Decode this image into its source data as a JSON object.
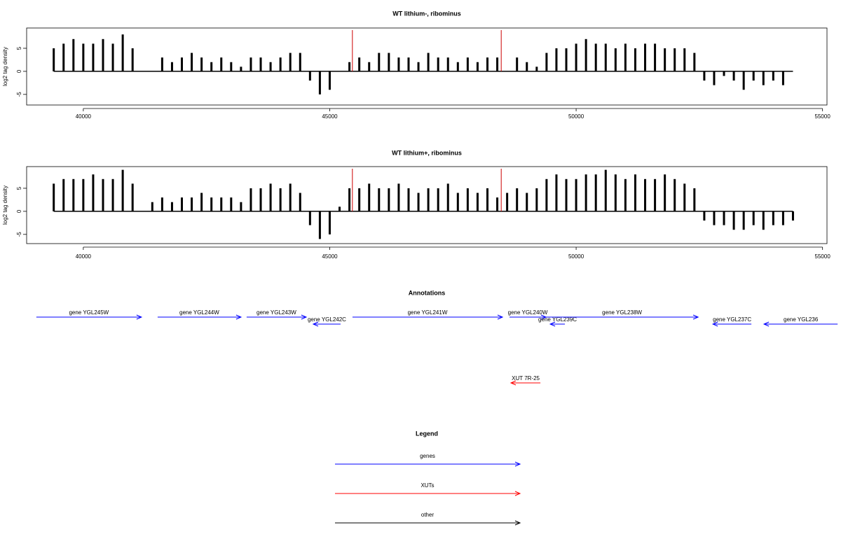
{
  "chart_data": [
    {
      "type": "bar",
      "title": "WT lithium-, ribominus",
      "ylabel": "log2 tag density",
      "color": "#000000",
      "xlim": [
        38850,
        55090
      ],
      "ylim": [
        -7.3,
        9.4
      ],
      "xticks": [
        40000,
        45000,
        50000,
        55000
      ],
      "yticks": [
        -5,
        0,
        5
      ],
      "markers": [
        45460,
        48480
      ],
      "marker_color": "#cc0000",
      "x": [
        39400,
        39600,
        39800,
        40000,
        40200,
        40400,
        40600,
        40800,
        41000,
        41200,
        41400,
        41600,
        41800,
        42000,
        42200,
        42400,
        42600,
        42800,
        43000,
        43200,
        43400,
        43600,
        43800,
        44000,
        44200,
        44400,
        44600,
        44800,
        45000,
        45200,
        45400,
        45600,
        45800,
        46000,
        46200,
        46400,
        46600,
        46800,
        47000,
        47200,
        47400,
        47600,
        47800,
        48000,
        48200,
        48400,
        48600,
        48800,
        49000,
        49200,
        49400,
        49600,
        49800,
        50000,
        50200,
        50400,
        50600,
        50800,
        51000,
        51200,
        51400,
        51600,
        51800,
        52000,
        52200,
        52400,
        52600,
        52800,
        53000,
        53200,
        53400,
        53600,
        53800,
        54000,
        54200,
        54400
      ],
      "values": [
        5,
        6,
        7,
        6,
        6,
        7,
        6,
        8,
        5,
        0,
        0,
        3,
        2,
        3,
        4,
        3,
        2,
        3,
        2,
        1,
        3,
        3,
        2,
        3,
        4,
        4,
        -2,
        -5,
        -4,
        0,
        2,
        3,
        2,
        4,
        4,
        3,
        3,
        2,
        4,
        3,
        3,
        2,
        3,
        2,
        3,
        3,
        0,
        3,
        2,
        1,
        4,
        5,
        5,
        6,
        7,
        6,
        6,
        5,
        6,
        5,
        6,
        6,
        5,
        5,
        5,
        4,
        -2,
        -3,
        -1,
        -2,
        -4,
        -2,
        -3,
        -2,
        -3,
        0
      ]
    },
    {
      "type": "bar",
      "title": "WT lithium+, ribominus",
      "ylabel": "log2 tag density",
      "color": "#000000",
      "xlim": [
        38850,
        55090
      ],
      "ylim": [
        -7.0,
        9.7
      ],
      "xticks": [
        40000,
        45000,
        50000,
        55000
      ],
      "yticks": [
        -5,
        0,
        5
      ],
      "markers": [
        45460,
        48480
      ],
      "marker_color": "#cc0000",
      "x": [
        39400,
        39600,
        39800,
        40000,
        40200,
        40400,
        40600,
        40800,
        41000,
        41200,
        41400,
        41600,
        41800,
        42000,
        42200,
        42400,
        42600,
        42800,
        43000,
        43200,
        43400,
        43600,
        43800,
        44000,
        44200,
        44400,
        44600,
        44800,
        45000,
        45200,
        45400,
        45600,
        45800,
        46000,
        46200,
        46400,
        46600,
        46800,
        47000,
        47200,
        47400,
        47600,
        47800,
        48000,
        48200,
        48400,
        48600,
        48800,
        49000,
        49200,
        49400,
        49600,
        49800,
        50000,
        50200,
        50400,
        50600,
        50800,
        51000,
        51200,
        51400,
        51600,
        51800,
        52000,
        52200,
        52400,
        52600,
        52800,
        53000,
        53200,
        53400,
        53600,
        53800,
        54000,
        54200,
        54400
      ],
      "values": [
        6,
        7,
        7,
        7,
        8,
        7,
        7,
        9,
        6,
        0,
        2,
        3,
        2,
        3,
        3,
        4,
        3,
        3,
        3,
        2,
        5,
        5,
        6,
        5,
        6,
        4,
        -3,
        -6,
        -5,
        1,
        5,
        5,
        6,
        5,
        5,
        6,
        5,
        4,
        5,
        5,
        6,
        4,
        5,
        4,
        5,
        3,
        4,
        5,
        4,
        5,
        7,
        8,
        7,
        7,
        8,
        8,
        9,
        8,
        7,
        8,
        7,
        7,
        8,
        7,
        6,
        5,
        -2,
        -3,
        -3,
        -4,
        -4,
        -3,
        -4,
        -3,
        -3,
        -2
      ]
    }
  ],
  "annotations": {
    "title": "Annotations",
    "xlim": [
      38850,
      55090
    ],
    "features": [
      {
        "label": "gene YGL245W",
        "start": 39047,
        "end": 41180,
        "color": "#0000ff"
      },
      {
        "label": "gene YGL244W",
        "start": 41508,
        "end": 43200,
        "color": "#0000ff"
      },
      {
        "label": "gene YGL243W",
        "start": 43314,
        "end": 44523,
        "color": "#0000ff"
      },
      {
        "label": "gene YGL242C",
        "start": 45220,
        "end": 44666,
        "color": "#0000ff"
      },
      {
        "label": "gene YGL241W",
        "start": 45462,
        "end": 48506,
        "color": "#0000ff"
      },
      {
        "label": "gene YGL240W",
        "start": 48648,
        "end": 49388,
        "color": "#0000ff"
      },
      {
        "label": "gene YGL239C",
        "start": 49772,
        "end": 49474,
        "color": "#0000ff"
      },
      {
        "label": "gene YGL238W",
        "start": 49388,
        "end": 52475,
        "color": "#0000ff"
      },
      {
        "label": "gene YGL237C",
        "start": 53556,
        "end": 52774,
        "color": "#0000ff"
      },
      {
        "label": "gene YGL236",
        "start": 55306,
        "end": 53812,
        "color": "#0000ff"
      },
      {
        "label": "XUT 7R-25",
        "start": 49275,
        "end": 48677,
        "color": "#ff0000"
      }
    ]
  },
  "legend": {
    "title": "Legend",
    "items": [
      {
        "name": "genes",
        "color": "#0000ff"
      },
      {
        "name": "XUTs",
        "color": "#ff0000"
      },
      {
        "name": "other",
        "color": "#000000"
      }
    ]
  }
}
